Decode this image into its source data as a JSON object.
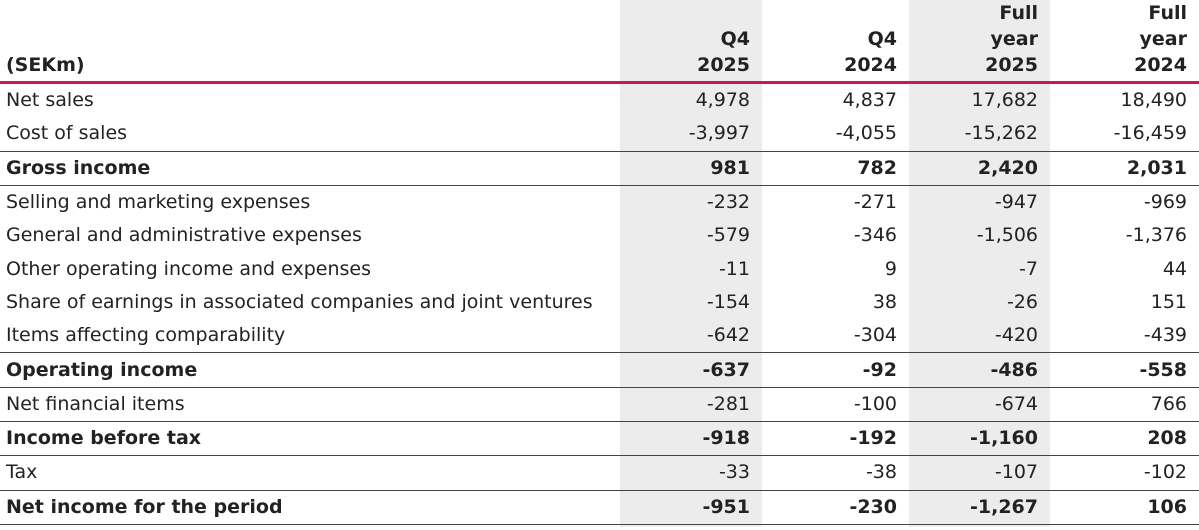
{
  "header": {
    "unit_label": "(SEKm)",
    "columns": [
      {
        "line1": "",
        "line2": "Q4",
        "line3": "2025"
      },
      {
        "line1": "",
        "line2": "Q4",
        "line3": "2024"
      },
      {
        "line1": "Full",
        "line2": "year",
        "line3": "2025"
      },
      {
        "line1": "Full",
        "line2": "year",
        "line3": "2024"
      }
    ]
  },
  "colors": {
    "accent_rule": "#d0145a",
    "shade": "#ececec"
  },
  "rows": [
    {
      "label": "Net sales",
      "values": [
        "4,978",
        "4,837",
        "17,682",
        "18,490"
      ],
      "bold": false
    },
    {
      "label": "Cost of sales",
      "values": [
        "-3,997",
        "-4,055",
        "-15,262",
        "-16,459"
      ],
      "bold": false
    },
    {
      "label": "Gross income",
      "values": [
        "981",
        "782",
        "2,420",
        "2,031"
      ],
      "bold": true
    },
    {
      "label": "Selling and marketing expenses",
      "values": [
        "-232",
        "-271",
        "-947",
        "-969"
      ],
      "bold": false
    },
    {
      "label": "General and administrative expenses",
      "values": [
        "-579",
        "-346",
        "-1,506",
        "-1,376"
      ],
      "bold": false
    },
    {
      "label": "Other operating income and expenses",
      "values": [
        "-11",
        "9",
        "-7",
        "44"
      ],
      "bold": false
    },
    {
      "label": "Share of earnings in associated companies and joint ventures",
      "values": [
        "-154",
        "38",
        "-26",
        "151"
      ],
      "bold": false
    },
    {
      "label": "Items affecting comparability",
      "values": [
        "-642",
        "-304",
        "-420",
        "-439"
      ],
      "bold": false
    },
    {
      "label": "Operating income",
      "values": [
        "-637",
        "-92",
        "-486",
        "-558"
      ],
      "bold": true
    },
    {
      "label": "Net financial items",
      "values": [
        "-281",
        "-100",
        "-674",
        "766"
      ],
      "bold": false
    },
    {
      "label": "Income before tax",
      "values": [
        "-918",
        "-192",
        "-1,160",
        "208"
      ],
      "bold": true
    },
    {
      "label": "Tax",
      "values": [
        "-33",
        "-38",
        "-107",
        "-102"
      ],
      "bold": false
    },
    {
      "label": "Net income for the period",
      "values": [
        "-951",
        "-230",
        "-1,267",
        "106"
      ],
      "bold": true
    }
  ]
}
